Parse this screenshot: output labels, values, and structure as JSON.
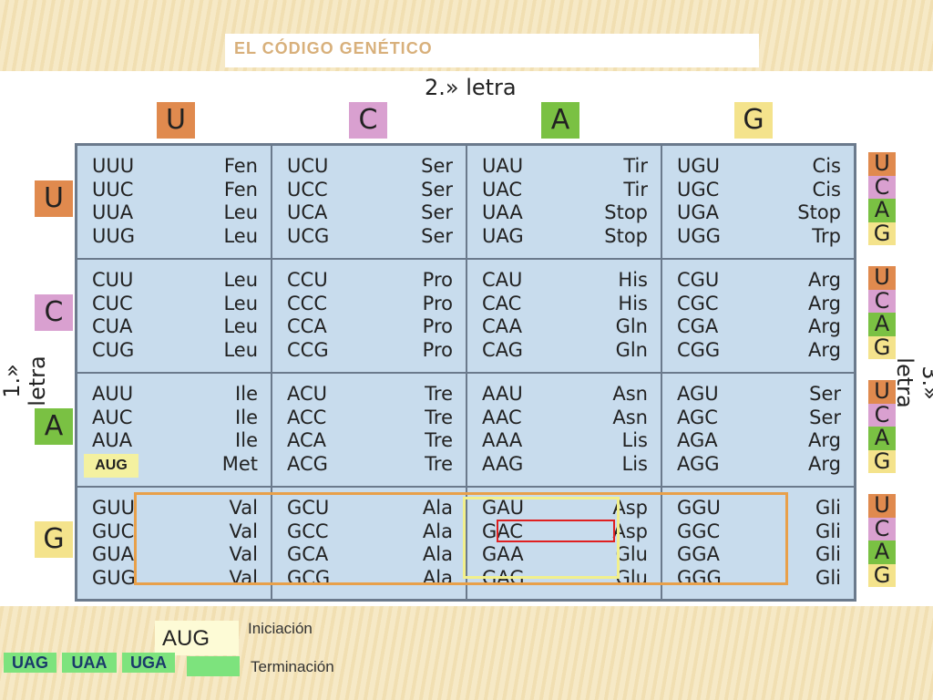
{
  "title": "EL CÓDIGO GENÉTICO",
  "second_letter_label": "2.» letra",
  "first_letter_label": "1.» letra",
  "third_letter_label": "3.» letra",
  "bases": [
    "U",
    "C",
    "A",
    "G"
  ],
  "colors": {
    "U": "#e08a4e",
    "C": "#d9a0d0",
    "A": "#7ac143",
    "G": "#f4e38c"
  },
  "table": [
    [
      [
        [
          "UUU",
          "Fen"
        ],
        [
          "UUC",
          "Fen"
        ],
        [
          "UUA",
          "Leu"
        ],
        [
          "UUG",
          "Leu"
        ]
      ],
      [
        [
          "UCU",
          "Ser"
        ],
        [
          "UCC",
          "Ser"
        ],
        [
          "UCA",
          "Ser"
        ],
        [
          "UCG",
          "Ser"
        ]
      ],
      [
        [
          "UAU",
          "Tir"
        ],
        [
          "UAC",
          "Tir"
        ],
        [
          "UAA",
          "Stop"
        ],
        [
          "UAG",
          "Stop"
        ]
      ],
      [
        [
          "UGU",
          "Cis"
        ],
        [
          "UGC",
          "Cis"
        ],
        [
          "UGA",
          "Stop"
        ],
        [
          "UGG",
          "Trp"
        ]
      ]
    ],
    [
      [
        [
          "CUU",
          "Leu"
        ],
        [
          "CUC",
          "Leu"
        ],
        [
          "CUA",
          "Leu"
        ],
        [
          "CUG",
          "Leu"
        ]
      ],
      [
        [
          "CCU",
          "Pro"
        ],
        [
          "CCC",
          "Pro"
        ],
        [
          "CCA",
          "Pro"
        ],
        [
          "CCG",
          "Pro"
        ]
      ],
      [
        [
          "CAU",
          "His"
        ],
        [
          "CAC",
          "His"
        ],
        [
          "CAA",
          "Gln"
        ],
        [
          "CAG",
          "Gln"
        ]
      ],
      [
        [
          "CGU",
          "Arg"
        ],
        [
          "CGC",
          "Arg"
        ],
        [
          "CGA",
          "Arg"
        ],
        [
          "CGG",
          "Arg"
        ]
      ]
    ],
    [
      [
        [
          "AUU",
          "Ile"
        ],
        [
          "AUC",
          "Ile"
        ],
        [
          "AUA",
          "Ile"
        ],
        [
          "",
          "Met"
        ]
      ],
      [
        [
          "ACU",
          "Tre"
        ],
        [
          "ACC",
          "Tre"
        ],
        [
          "ACA",
          "Tre"
        ],
        [
          "ACG",
          "Tre"
        ]
      ],
      [
        [
          "AAU",
          "Asn"
        ],
        [
          "AAC",
          "Asn"
        ],
        [
          "AAA",
          "Lis"
        ],
        [
          "AAG",
          "Lis"
        ]
      ],
      [
        [
          "AGU",
          "Ser"
        ],
        [
          "AGC",
          "Ser"
        ],
        [
          "AGA",
          "Arg"
        ],
        [
          "AGG",
          "Arg"
        ]
      ]
    ],
    [
      [
        [
          "GUU",
          "Val"
        ],
        [
          "GUC",
          "Val"
        ],
        [
          "GUA",
          "Val"
        ],
        [
          "GUG",
          "Val"
        ]
      ],
      [
        [
          "GCU",
          "Ala"
        ],
        [
          "GCC",
          "Ala"
        ],
        [
          "GCA",
          "Ala"
        ],
        [
          "GCG",
          "Ala"
        ]
      ],
      [
        [
          "GAU",
          "Asp"
        ],
        [
          "GAC",
          "Asp"
        ],
        [
          "GAA",
          "Glu"
        ],
        [
          "GAG",
          "Glu"
        ]
      ],
      [
        [
          "GGU",
          "Gli"
        ],
        [
          "GGC",
          "Gli"
        ],
        [
          "GGA",
          "Gli"
        ],
        [
          "GGG",
          "Gli"
        ]
      ]
    ]
  ],
  "aug_overlay": "AUG",
  "legend": {
    "aug": "AUG",
    "iniciacion": "Iniciación",
    "terminacion": "Terminación",
    "stops": [
      "UAG",
      "UAA",
      "UGA"
    ]
  }
}
